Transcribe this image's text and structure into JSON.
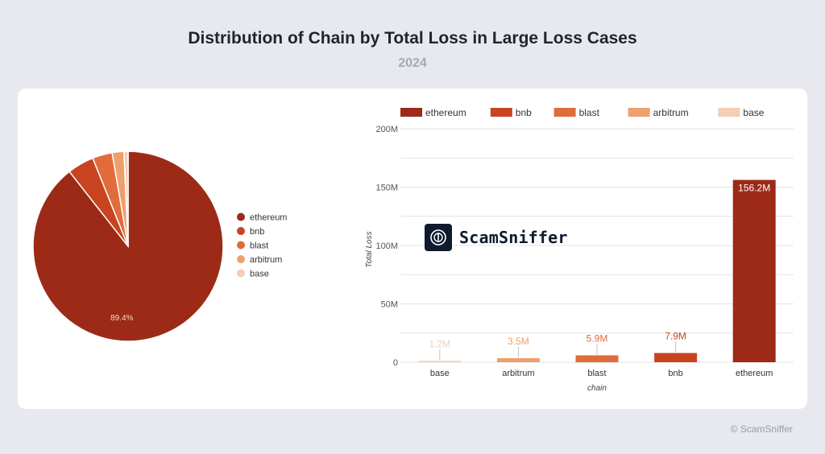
{
  "header": {
    "title": "Distribution of Chain by Total Loss in Large Loss Cases",
    "subtitle": "2024"
  },
  "footer": {
    "copyright": "© ScamSniffer"
  },
  "watermark": {
    "text": "ScamSniffer"
  },
  "colors": {
    "ethereum": "#9c2a17",
    "bnb": "#c8431f",
    "blast": "#e06c3c",
    "arbitrum": "#ee9f6e",
    "base": "#f4cdb4"
  },
  "chart_data": [
    {
      "type": "pie",
      "categories": [
        "ethereum",
        "bnb",
        "blast",
        "arbitrum",
        "base"
      ],
      "values": [
        156.2,
        7.9,
        5.9,
        3.5,
        1.2
      ],
      "slice_labels": [
        "89.4%",
        "",
        "",
        "",
        ""
      ],
      "legend": [
        "ethereum",
        "bnb",
        "blast",
        "arbitrum",
        "base"
      ],
      "legend_position": "right"
    },
    {
      "type": "bar",
      "categories": [
        "base",
        "arbitrum",
        "blast",
        "bnb",
        "ethereum"
      ],
      "values": [
        1.2,
        3.5,
        5.9,
        7.9,
        156.2
      ],
      "data_labels": [
        "1.2M",
        "3.5M",
        "5.9M",
        "7.9M",
        "156.2M"
      ],
      "legend": [
        "ethereum",
        "bnb",
        "blast",
        "arbitrum",
        "base"
      ],
      "legend_position": "top",
      "xlabel": "chain",
      "ylabel": "Total Loss",
      "ylim": [
        0,
        200
      ],
      "yticks": [
        0,
        50,
        100,
        150,
        200
      ],
      "ytick_labels": [
        "0",
        "50M",
        "100M",
        "150M",
        "200M"
      ],
      "grid": true
    }
  ]
}
